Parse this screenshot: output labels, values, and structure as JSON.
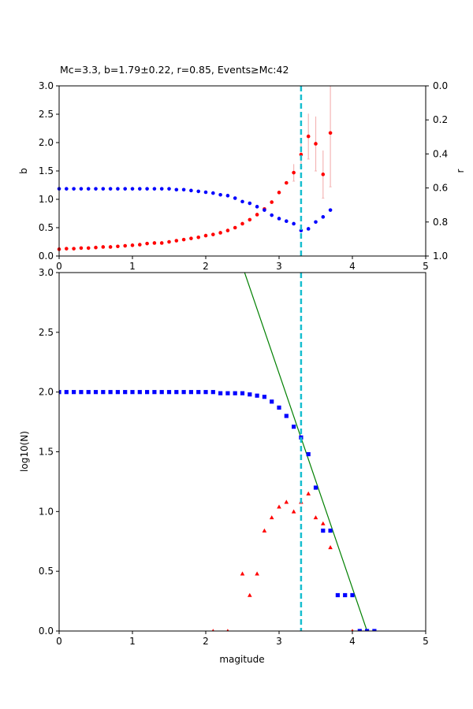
{
  "chart_data": [
    {
      "type": "scatter",
      "title": "Mc=3.3, b=1.79±0.22, r=0.85, Events≥Mc:42",
      "xlabel": "",
      "ylabel": "b",
      "y2label": "r",
      "xlim": [
        0,
        5
      ],
      "ylim": [
        0,
        3
      ],
      "y2lim": [
        1.0,
        0.0
      ],
      "y2_inverted": true,
      "grid": false,
      "xticks": [
        "0",
        "1",
        "2",
        "3",
        "4",
        "5"
      ],
      "yticks": [
        "0.0",
        "0.5",
        "1.0",
        "1.5",
        "2.0",
        "2.5",
        "3.0"
      ],
      "y2ticks": [
        "0.0",
        "0.2",
        "0.4",
        "0.6",
        "0.8",
        "1.0"
      ],
      "mc_line": {
        "x": 3.3,
        "color": "#17becf"
      },
      "series": [
        {
          "axis": "left",
          "color": "#ff0000",
          "errorbar_color": "#f4b6b6",
          "points": [
            [
              0.0,
              0.12
            ],
            [
              0.1,
              0.13
            ],
            [
              0.2,
              0.13
            ],
            [
              0.3,
              0.14
            ],
            [
              0.4,
              0.14
            ],
            [
              0.5,
              0.15
            ],
            [
              0.6,
              0.16
            ],
            [
              0.7,
              0.16
            ],
            [
              0.8,
              0.17
            ],
            [
              0.9,
              0.18
            ],
            [
              1.0,
              0.19
            ],
            [
              1.1,
              0.2
            ],
            [
              1.2,
              0.22
            ],
            [
              1.3,
              0.23
            ],
            [
              1.4,
              0.23
            ],
            [
              1.5,
              0.25
            ],
            [
              1.6,
              0.27
            ],
            [
              1.7,
              0.29
            ],
            [
              1.8,
              0.31
            ],
            [
              1.9,
              0.33
            ],
            [
              2.0,
              0.36
            ],
            [
              2.1,
              0.38
            ],
            [
              2.2,
              0.41
            ],
            [
              2.3,
              0.45
            ],
            [
              2.4,
              0.5
            ],
            [
              2.5,
              0.57
            ],
            [
              2.6,
              0.64
            ],
            [
              2.7,
              0.73
            ],
            [
              2.8,
              0.83
            ],
            [
              2.9,
              0.95
            ],
            [
              3.0,
              1.12
            ],
            [
              3.1,
              1.29
            ],
            [
              3.2,
              1.47
            ],
            [
              3.3,
              1.79
            ],
            [
              3.4,
              2.11
            ],
            [
              3.5,
              1.98
            ],
            [
              3.6,
              1.44
            ],
            [
              3.7,
              2.17
            ]
          ],
          "errors": [
            [
              3.2,
              1.47,
              0.15
            ],
            [
              3.3,
              1.79,
              0.22
            ],
            [
              3.4,
              2.11,
              0.4
            ],
            [
              3.5,
              1.98,
              0.48
            ],
            [
              3.6,
              1.44,
              0.42
            ],
            [
              3.7,
              2.17,
              0.95
            ]
          ]
        },
        {
          "axis": "right",
          "color": "#0000ff",
          "points": [
            [
              0.0,
              0.605
            ],
            [
              0.1,
              0.605
            ],
            [
              0.2,
              0.605
            ],
            [
              0.3,
              0.605
            ],
            [
              0.4,
              0.605
            ],
            [
              0.5,
              0.605
            ],
            [
              0.6,
              0.605
            ],
            [
              0.7,
              0.605
            ],
            [
              0.8,
              0.605
            ],
            [
              0.9,
              0.605
            ],
            [
              1.0,
              0.605
            ],
            [
              1.1,
              0.605
            ],
            [
              1.2,
              0.605
            ],
            [
              1.3,
              0.605
            ],
            [
              1.4,
              0.605
            ],
            [
              1.5,
              0.605
            ],
            [
              1.6,
              0.61
            ],
            [
              1.7,
              0.61
            ],
            [
              1.8,
              0.615
            ],
            [
              1.9,
              0.62
            ],
            [
              2.0,
              0.625
            ],
            [
              2.1,
              0.63
            ],
            [
              2.2,
              0.64
            ],
            [
              2.3,
              0.645
            ],
            [
              2.4,
              0.66
            ],
            [
              2.5,
              0.68
            ],
            [
              2.6,
              0.69
            ],
            [
              2.7,
              0.71
            ],
            [
              2.8,
              0.73
            ],
            [
              2.9,
              0.76
            ],
            [
              3.0,
              0.78
            ],
            [
              3.1,
              0.795
            ],
            [
              3.2,
              0.81
            ],
            [
              3.3,
              0.85
            ],
            [
              3.4,
              0.84
            ],
            [
              3.5,
              0.8
            ],
            [
              3.6,
              0.77
            ],
            [
              3.7,
              0.73
            ]
          ]
        }
      ]
    },
    {
      "type": "scatter",
      "title": "",
      "xlabel": "magitude",
      "ylabel": "log10(N)",
      "xlim": [
        0,
        5
      ],
      "ylim": [
        0,
        3
      ],
      "grid": false,
      "xticks": [
        "0",
        "1",
        "2",
        "3",
        "4",
        "5"
      ],
      "yticks": [
        "0.0",
        "0.5",
        "1.0",
        "1.5",
        "2.0",
        "2.5",
        "3.0"
      ],
      "mc_line": {
        "x": 3.3,
        "color": "#17becf"
      },
      "fit_line": {
        "color": "#008000",
        "points": [
          [
            2.53,
            3.0
          ],
          [
            4.2,
            0.0
          ]
        ]
      },
      "series": [
        {
          "marker": "square",
          "color": "#0000ff",
          "points": [
            [
              0.0,
              2.0
            ],
            [
              0.1,
              2.0
            ],
            [
              0.2,
              2.0
            ],
            [
              0.3,
              2.0
            ],
            [
              0.4,
              2.0
            ],
            [
              0.5,
              2.0
            ],
            [
              0.6,
              2.0
            ],
            [
              0.7,
              2.0
            ],
            [
              0.8,
              2.0
            ],
            [
              0.9,
              2.0
            ],
            [
              1.0,
              2.0
            ],
            [
              1.1,
              2.0
            ],
            [
              1.2,
              2.0
            ],
            [
              1.3,
              2.0
            ],
            [
              1.4,
              2.0
            ],
            [
              1.5,
              2.0
            ],
            [
              1.6,
              2.0
            ],
            [
              1.7,
              2.0
            ],
            [
              1.8,
              2.0
            ],
            [
              1.9,
              2.0
            ],
            [
              2.0,
              2.0
            ],
            [
              2.1,
              2.0
            ],
            [
              2.2,
              1.99
            ],
            [
              2.3,
              1.99
            ],
            [
              2.4,
              1.99
            ],
            [
              2.5,
              1.99
            ],
            [
              2.6,
              1.98
            ],
            [
              2.7,
              1.97
            ],
            [
              2.8,
              1.96
            ],
            [
              2.9,
              1.92
            ],
            [
              3.0,
              1.87
            ],
            [
              3.1,
              1.8
            ],
            [
              3.2,
              1.71
            ],
            [
              3.3,
              1.62
            ],
            [
              3.4,
              1.48
            ],
            [
              3.5,
              1.2
            ],
            [
              3.6,
              0.84
            ],
            [
              3.7,
              0.84
            ],
            [
              3.8,
              0.3
            ],
            [
              3.9,
              0.3
            ],
            [
              4.0,
              0.3
            ],
            [
              4.1,
              0.0
            ],
            [
              4.2,
              0.0
            ],
            [
              4.3,
              0.0
            ]
          ]
        },
        {
          "marker": "triangle",
          "color": "#ff0000",
          "points": [
            [
              2.1,
              0.0
            ],
            [
              2.3,
              0.0
            ],
            [
              2.5,
              0.48
            ],
            [
              2.6,
              0.3
            ],
            [
              2.7,
              0.48
            ],
            [
              2.8,
              0.84
            ],
            [
              2.9,
              0.95
            ],
            [
              3.0,
              1.04
            ],
            [
              3.1,
              1.08
            ],
            [
              3.2,
              1.0
            ],
            [
              3.3,
              1.08
            ],
            [
              3.4,
              1.15
            ],
            [
              3.5,
              0.95
            ],
            [
              3.6,
              0.9
            ],
            [
              3.7,
              0.7
            ],
            [
              4.0,
              0.0
            ]
          ]
        }
      ]
    }
  ]
}
